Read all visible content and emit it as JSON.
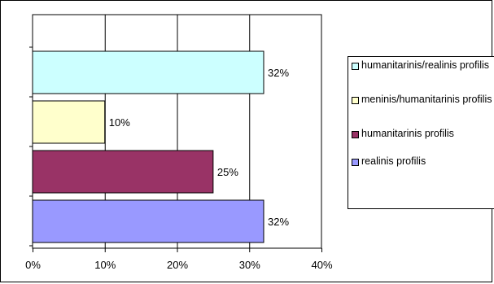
{
  "chart_data": {
    "type": "bar",
    "orientation": "horizontal",
    "title": "",
    "xlabel": "",
    "ylabel": "",
    "xlim": [
      0,
      40
    ],
    "x_ticks": [
      "0%",
      "10%",
      "20%",
      "30%",
      "40%"
    ],
    "grid": true,
    "legend_position": "right",
    "bars": [
      {
        "category": "humanitarinis/realinis profilis",
        "value": 32,
        "label": "32%",
        "color": "#CCFFFF"
      },
      {
        "category": "meninis/humanitarinis profilis",
        "value": 10,
        "label": "10%",
        "color": "#FFFFCC"
      },
      {
        "category": "humanitarinis profilis",
        "value": 25,
        "label": "25%",
        "color": "#993366"
      },
      {
        "category": "realinis profilis",
        "value": 32,
        "label": "32%",
        "color": "#9999FF"
      }
    ]
  }
}
